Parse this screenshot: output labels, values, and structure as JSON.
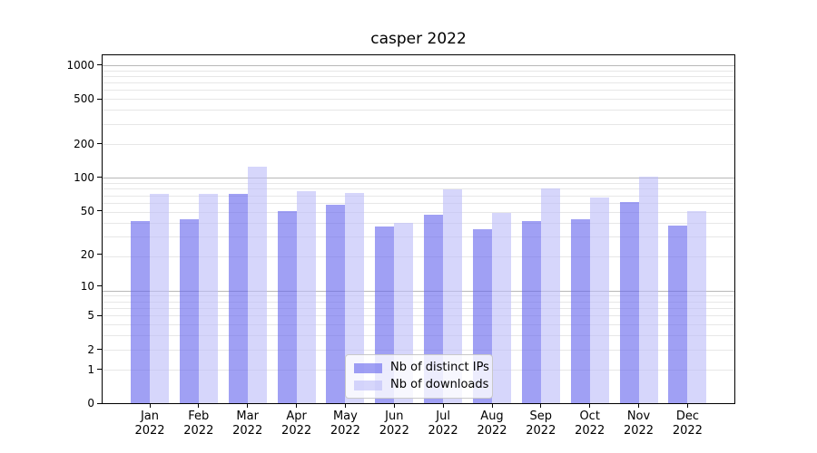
{
  "title": "casper 2022",
  "chart_data": {
    "type": "bar",
    "title": "casper 2022",
    "categories": [
      "Jan",
      "Feb",
      "Mar",
      "Apr",
      "May",
      "Jun",
      "Jul",
      "Aug",
      "Sep",
      "Oct",
      "Nov",
      "Dec"
    ],
    "year_label": "2022",
    "series": [
      {
        "name": "Nb of distinct IPs",
        "color": "#6666ee",
        "alpha": 0.62,
        "values": [
          40,
          42,
          71,
          50,
          57,
          36,
          46,
          34,
          40,
          42,
          60,
          37
        ]
      },
      {
        "name": "Nb of downloads",
        "color": "#bdbdf8",
        "alpha": 0.62,
        "values": [
          71,
          71,
          125,
          75,
          72,
          39,
          78,
          48,
          80,
          66,
          101,
          50
        ]
      }
    ],
    "yticks": [
      0,
      1,
      2,
      5,
      10,
      20,
      50,
      100,
      200,
      500,
      1000
    ],
    "yscale": "log(value+1)",
    "ylim": [
      0,
      1243
    ],
    "xlim": [
      -0.98,
      11.97
    ],
    "xlabel": "",
    "ylabel": "",
    "grid": true,
    "legend_position": "lower center",
    "colors": {
      "major_grid": "#b8b8b8",
      "minor_grid": "#e7e7e7",
      "axis": "#000000",
      "text": "#000000"
    }
  }
}
